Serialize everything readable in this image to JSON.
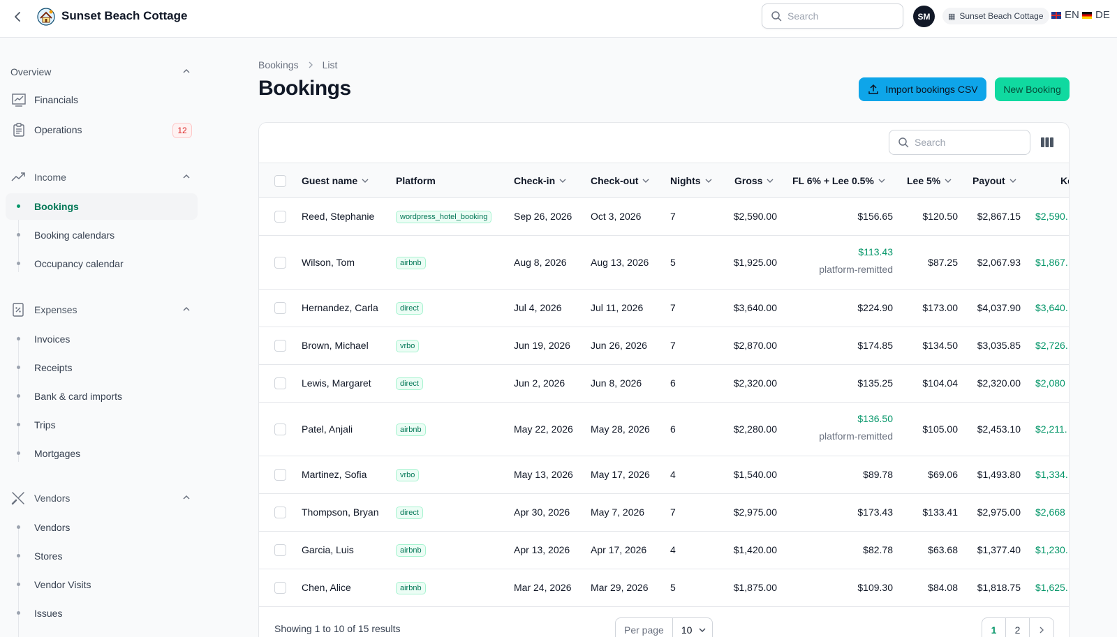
{
  "header": {
    "title": "Sunset Beach Cottage",
    "search_placeholder": "Search",
    "avatar_initials": "SM",
    "tenant": "Sunset Beach Cottage",
    "lang_en": "EN",
    "lang_de": "DE"
  },
  "sidebar": {
    "overview": {
      "label": "Overview",
      "items": [
        {
          "label": "Financials",
          "icon": "chart-icon"
        },
        {
          "label": "Operations",
          "icon": "clipboard-icon",
          "badge": "12"
        }
      ]
    },
    "income": {
      "label": "Income",
      "items": [
        "Bookings",
        "Booking calendars",
        "Occupancy calendar"
      ]
    },
    "expenses": {
      "label": "Expenses",
      "items": [
        "Invoices",
        "Receipts",
        "Bank & card imports",
        "Trips",
        "Mortgages"
      ]
    },
    "vendors": {
      "label": "Vendors",
      "items": [
        "Vendors",
        "Stores",
        "Vendor Visits",
        "Issues"
      ]
    }
  },
  "main": {
    "breadcrumb": [
      "Bookings",
      "List"
    ],
    "title": "Bookings",
    "import_label": "Import bookings CSV",
    "new_label": "New Booking",
    "table_search_placeholder": "Search",
    "columns": [
      "Guest name",
      "Platform",
      "Check-in",
      "Check-out",
      "Nights",
      "Gross",
      "FL 6% + Lee 0.5%",
      "Lee 5%",
      "Payout",
      "Ke"
    ],
    "rows": [
      {
        "guest": "Reed, Stephanie",
        "platform": "wordpress_hotel_booking",
        "checkin": "Sep 26, 2026",
        "checkout": "Oct 3, 2026",
        "nights": "7",
        "gross": "$2,590.00",
        "fl": "$156.65",
        "fl_note": "",
        "lee": "$120.50",
        "payout": "$2,867.15",
        "ke": "$2,590."
      },
      {
        "guest": "Wilson, Tom",
        "platform": "airbnb",
        "checkin": "Aug 8, 2026",
        "checkout": "Aug 13, 2026",
        "nights": "5",
        "gross": "$1,925.00",
        "fl": "$113.43",
        "fl_note": "platform-remitted",
        "lee": "$87.25",
        "payout": "$2,067.93",
        "ke": "$1,867."
      },
      {
        "guest": "Hernandez, Carla",
        "platform": "direct",
        "checkin": "Jul 4, 2026",
        "checkout": "Jul 11, 2026",
        "nights": "7",
        "gross": "$3,640.00",
        "fl": "$224.90",
        "fl_note": "",
        "lee": "$173.00",
        "payout": "$4,037.90",
        "ke": "$3,640."
      },
      {
        "guest": "Brown, Michael",
        "platform": "vrbo",
        "checkin": "Jun 19, 2026",
        "checkout": "Jun 26, 2026",
        "nights": "7",
        "gross": "$2,870.00",
        "fl": "$174.85",
        "fl_note": "",
        "lee": "$134.50",
        "payout": "$3,035.85",
        "ke": "$2,726."
      },
      {
        "guest": "Lewis, Margaret",
        "platform": "direct",
        "checkin": "Jun 2, 2026",
        "checkout": "Jun 8, 2026",
        "nights": "6",
        "gross": "$2,320.00",
        "fl": "$135.25",
        "fl_note": "",
        "lee": "$104.04",
        "payout": "$2,320.00",
        "ke": "$2,080"
      },
      {
        "guest": "Patel, Anjali",
        "platform": "airbnb",
        "checkin": "May 22, 2026",
        "checkout": "May 28, 2026",
        "nights": "6",
        "gross": "$2,280.00",
        "fl": "$136.50",
        "fl_note": "platform-remitted",
        "lee": "$105.00",
        "payout": "$2,453.10",
        "ke": "$2,211."
      },
      {
        "guest": "Martinez, Sofia",
        "platform": "vrbo",
        "checkin": "May 13, 2026",
        "checkout": "May 17, 2026",
        "nights": "4",
        "gross": "$1,540.00",
        "fl": "$89.78",
        "fl_note": "",
        "lee": "$69.06",
        "payout": "$1,493.80",
        "ke": "$1,334."
      },
      {
        "guest": "Thompson, Bryan",
        "platform": "direct",
        "checkin": "Apr 30, 2026",
        "checkout": "May 7, 2026",
        "nights": "7",
        "gross": "$2,975.00",
        "fl": "$173.43",
        "fl_note": "",
        "lee": "$133.41",
        "payout": "$2,975.00",
        "ke": "$2,668"
      },
      {
        "guest": "Garcia, Luis",
        "platform": "airbnb",
        "checkin": "Apr 13, 2026",
        "checkout": "Apr 17, 2026",
        "nights": "4",
        "gross": "$1,420.00",
        "fl": "$82.78",
        "fl_note": "",
        "lee": "$63.68",
        "payout": "$1,377.40",
        "ke": "$1,230."
      },
      {
        "guest": "Chen, Alice",
        "platform": "airbnb",
        "checkin": "Mar 24, 2026",
        "checkout": "Mar 29, 2026",
        "nights": "5",
        "gross": "$1,875.00",
        "fl": "$109.30",
        "fl_note": "",
        "lee": "$84.08",
        "payout": "$1,818.75",
        "ke": "$1,625."
      }
    ],
    "footer": {
      "summary": "Showing 1 to 10 of 15 results",
      "per_page_label": "Per page",
      "per_page_value": "10",
      "pages": [
        "1",
        "2"
      ]
    }
  },
  "colors": {
    "accent": "#059669",
    "import_btn": "#0ea5e9",
    "new_btn": "#10d9a0"
  }
}
